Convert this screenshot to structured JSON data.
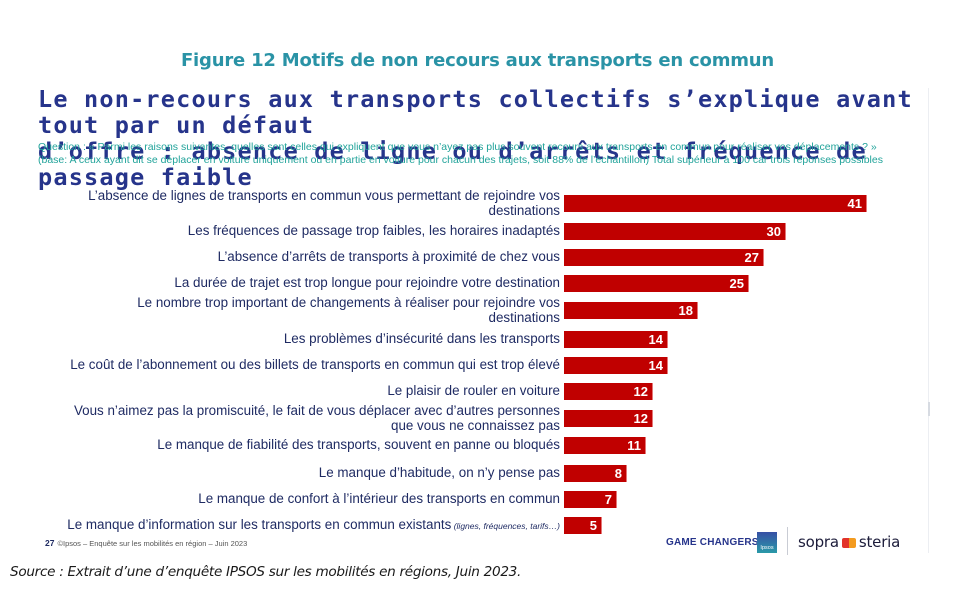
{
  "figure_title": "Figure 12 Motifs de non recours aux transports en commun",
  "headline_line1": "Le non-recours aux transports collectifs s’explique avant tout par un défaut",
  "headline_line2": "d’offre : absence de ligne ou d’arrêts et fréquence de passage faible",
  "question": "Question : « Parmi les raisons suivantes, quelles sont celles qui expliquent que vous n’ayez pas plus souvent recours aux transports en commun pour réaliser vos déplacements ?  » (base: A ceux ayant dit se déplacer en voiture uniquement ou en partie en voiture pour chacun des trajets, soit 88% de l’échantillon) Total supérieur à 100 car trois réponses possibles",
  "footer": {
    "page_number": "27",
    "note": "©Ipsos – Enquête sur les mobilités en région – Juin 2023",
    "logo_game_changers": "GAME CHANGERS",
    "logo_ipsos": "Ipsos",
    "logo_sopra_left": "sopra",
    "logo_sopra_right": "steria"
  },
  "source": "Source : Extrait d’une d’enquête IPSOS sur les mobilités en régions, Juin 2023.",
  "colors": {
    "bar": "#c00000",
    "figure_title": "#2a93a6",
    "headline": "#26348b",
    "question": "#21a39a",
    "labels": "#1f2b63"
  },
  "chart_data": {
    "type": "bar",
    "orientation": "horizontal",
    "title": "Le non-recours aux transports collectifs s’explique avant tout par un défaut d’offre : absence de ligne ou d’arrêts et fréquence de passage faible",
    "xlabel": "",
    "ylabel": "",
    "unit": "%",
    "xlim": [
      0,
      45
    ],
    "grid": false,
    "legend": "none",
    "categories": [
      {
        "lines": [
          "L’absence de lignes de transports en commun vous permettant de rejoindre vos",
          "destinations"
        ],
        "note": ""
      },
      {
        "lines": [
          "Les fréquences de passage trop faibles, les horaires inadaptés"
        ],
        "note": ""
      },
      {
        "lines": [
          "L’absence d’arrêts de transports à proximité de chez vous"
        ],
        "note": ""
      },
      {
        "lines": [
          "La durée de trajet est trop longue pour rejoindre votre destination"
        ],
        "note": ""
      },
      {
        "lines": [
          "Le nombre trop important de changements à réaliser pour rejoindre vos",
          "destinations"
        ],
        "note": ""
      },
      {
        "lines": [
          "Les problèmes d’insécurité dans les transports"
        ],
        "note": ""
      },
      {
        "lines": [
          "Le coût de l’abonnement ou des billets de transports en commun qui est trop élevé"
        ],
        "note": ""
      },
      {
        "lines": [
          "Le plaisir de rouler en voiture"
        ],
        "note": ""
      },
      {
        "lines": [
          "Vous n’aimez pas la promiscuité, le fait de vous déplacer avec d’autres personnes",
          "que vous ne connaissez pas"
        ],
        "note": ""
      },
      {
        "lines": [
          "Le manque de fiabilité des transports, souvent en panne ou bloqués"
        ],
        "note": ""
      },
      {
        "lines": [
          "Le manque d’habitude, on n’y pense pas"
        ],
        "note": ""
      },
      {
        "lines": [
          "Le manque de confort à l’intérieur des transports en commun"
        ],
        "note": ""
      },
      {
        "lines": [
          "Le manque d’information sur les transports en commun existants"
        ],
        "note": "(lignes, fréquences, tarifs…)"
      }
    ],
    "values": [
      41,
      30,
      27,
      25,
      18,
      14,
      14,
      12,
      12,
      11,
      8,
      7,
      5
    ]
  }
}
